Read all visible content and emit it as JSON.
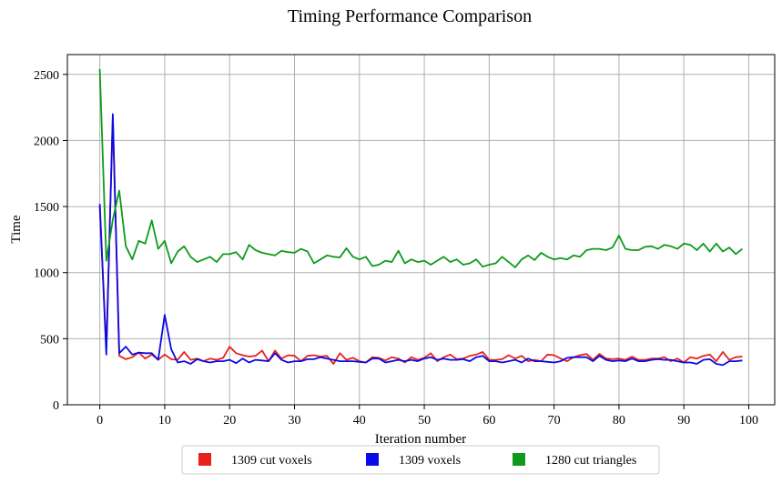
{
  "chart_data": {
    "type": "line",
    "title": "Timing Performance Comparison",
    "xlabel": "Iteration number",
    "ylabel": "Time",
    "xlim": [
      -5,
      104
    ],
    "ylim": [
      0,
      2650
    ],
    "xticks": [
      0,
      10,
      20,
      30,
      40,
      50,
      60,
      70,
      80,
      90,
      100
    ],
    "yticks": [
      0,
      500,
      1000,
      1500,
      2000,
      2500
    ],
    "grid": true,
    "legend_position": "bottom-center",
    "x": [
      0,
      1,
      2,
      3,
      4,
      5,
      6,
      7,
      8,
      9,
      10,
      11,
      12,
      13,
      14,
      15,
      16,
      17,
      18,
      19,
      20,
      21,
      22,
      23,
      24,
      25,
      26,
      27,
      28,
      29,
      30,
      31,
      32,
      33,
      34,
      35,
      36,
      37,
      38,
      39,
      40,
      41,
      42,
      43,
      44,
      45,
      46,
      47,
      48,
      49,
      50,
      51,
      52,
      53,
      54,
      55,
      56,
      57,
      58,
      59,
      60,
      61,
      62,
      63,
      64,
      65,
      66,
      67,
      68,
      69,
      70,
      71,
      72,
      73,
      74,
      75,
      76,
      77,
      78,
      79,
      80,
      81,
      82,
      83,
      84,
      85,
      86,
      87,
      88,
      89,
      90,
      91,
      92,
      93,
      94,
      95,
      96,
      97,
      98,
      99
    ],
    "series": [
      {
        "name": "1309 cut voxels",
        "color": "#e8221a",
        "values": [
          1500,
          420,
          2180,
          370,
          345,
          360,
          395,
          350,
          380,
          340,
          380,
          345,
          340,
          400,
          340,
          350,
          330,
          350,
          340,
          355,
          440,
          390,
          375,
          365,
          370,
          410,
          330,
          410,
          350,
          375,
          370,
          330,
          370,
          375,
          365,
          370,
          310,
          390,
          340,
          355,
          330,
          320,
          360,
          355,
          335,
          360,
          350,
          320,
          360,
          340,
          355,
          390,
          330,
          360,
          380,
          345,
          350,
          370,
          380,
          400,
          340,
          340,
          345,
          375,
          350,
          370,
          330,
          340,
          330,
          380,
          375,
          350,
          330,
          360,
          375,
          385,
          340,
          385,
          350,
          345,
          350,
          340,
          365,
          340,
          340,
          350,
          350,
          360,
          330,
          350,
          320,
          360,
          350,
          370,
          380,
          330,
          400,
          340,
          360,
          365
        ]
      },
      {
        "name": "1309 voxels",
        "color": "#0a0ae6",
        "values": [
          1520,
          380,
          2200,
          390,
          440,
          380,
          395,
          390,
          390,
          340,
          680,
          420,
          320,
          330,
          310,
          345,
          330,
          320,
          330,
          330,
          340,
          315,
          350,
          320,
          340,
          335,
          330,
          390,
          340,
          320,
          330,
          330,
          345,
          345,
          360,
          350,
          340,
          330,
          330,
          330,
          325,
          320,
          350,
          350,
          320,
          330,
          340,
          330,
          340,
          330,
          350,
          360,
          340,
          350,
          340,
          340,
          345,
          330,
          360,
          370,
          330,
          330,
          320,
          330,
          340,
          320,
          350,
          330,
          330,
          325,
          320,
          330,
          355,
          360,
          360,
          360,
          330,
          370,
          340,
          330,
          335,
          330,
          350,
          330,
          330,
          340,
          345,
          340,
          340,
          330,
          320,
          320,
          310,
          340,
          345,
          310,
          300,
          330,
          330,
          335
        ]
      },
      {
        "name": "1280 cut triangles",
        "color": "#0e9a1b",
        "values": [
          2540,
          1090,
          1400,
          1620,
          1200,
          1100,
          1240,
          1220,
          1395,
          1180,
          1240,
          1070,
          1160,
          1200,
          1120,
          1080,
          1100,
          1120,
          1080,
          1140,
          1140,
          1155,
          1100,
          1210,
          1170,
          1150,
          1140,
          1130,
          1165,
          1155,
          1150,
          1180,
          1160,
          1070,
          1100,
          1130,
          1120,
          1115,
          1185,
          1120,
          1100,
          1120,
          1050,
          1060,
          1090,
          1080,
          1165,
          1070,
          1100,
          1080,
          1090,
          1060,
          1090,
          1120,
          1080,
          1100,
          1060,
          1070,
          1100,
          1045,
          1060,
          1070,
          1120,
          1080,
          1040,
          1100,
          1130,
          1095,
          1150,
          1120,
          1100,
          1110,
          1100,
          1130,
          1120,
          1170,
          1180,
          1180,
          1170,
          1190,
          1280,
          1180,
          1170,
          1170,
          1195,
          1200,
          1180,
          1210,
          1200,
          1180,
          1220,
          1210,
          1170,
          1220,
          1160,
          1220,
          1160,
          1190,
          1140,
          1180
        ]
      }
    ]
  }
}
